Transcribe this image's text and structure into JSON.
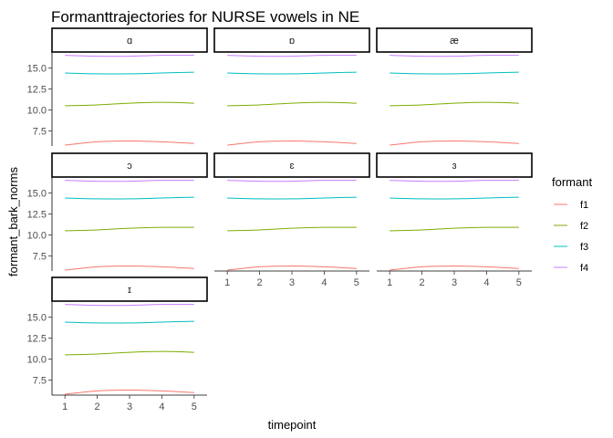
{
  "chart_data": {
    "type": "line",
    "title": "Formanttrajectories for NURSE vowels in NE",
    "xlabel": "timepoint",
    "ylabel": "formant_bark_norms",
    "x": [
      1,
      2,
      3,
      4,
      5
    ],
    "xlim": [
      0.6,
      5.4
    ],
    "ylim": [
      5.7,
      16.9
    ],
    "yticks": [
      7.5,
      10.0,
      12.5,
      15.0
    ],
    "ytick_labels": [
      "7.5",
      "10.0",
      "12.5",
      "15.0"
    ],
    "xticks": [
      "1",
      "2",
      "3",
      "4",
      "5"
    ],
    "grid": false,
    "facet_layout": "3 columns, free x axes shown on bottom row of each column",
    "legend": {
      "title": "formant",
      "position": "right",
      "entries": [
        {
          "label": "f1",
          "color": "#F8766D"
        },
        {
          "label": "f2",
          "color": "#7CAE00"
        },
        {
          "label": "f3",
          "color": "#00BFC4"
        },
        {
          "label": "f4",
          "color": "#C77CFF"
        }
      ]
    },
    "facets": [
      {
        "label": "ɑ",
        "series": [
          {
            "name": "f1",
            "values": [
              5.8,
              6.2,
              6.3,
              6.2,
              6.0
            ]
          },
          {
            "name": "f2",
            "values": [
              10.5,
              10.6,
              10.8,
              10.9,
              10.8
            ]
          },
          {
            "name": "f3",
            "values": [
              14.4,
              14.3,
              14.3,
              14.4,
              14.5
            ]
          },
          {
            "name": "f4",
            "values": [
              16.5,
              16.4,
              16.4,
              16.5,
              16.5
            ]
          }
        ]
      },
      {
        "label": "ɒ",
        "series": [
          {
            "name": "f1",
            "values": [
              5.8,
              6.2,
              6.3,
              6.2,
              6.0
            ]
          },
          {
            "name": "f2",
            "values": [
              10.5,
              10.6,
              10.8,
              10.9,
              10.8
            ]
          },
          {
            "name": "f3",
            "values": [
              14.4,
              14.3,
              14.3,
              14.4,
              14.5
            ]
          },
          {
            "name": "f4",
            "values": [
              16.5,
              16.4,
              16.4,
              16.5,
              16.5
            ]
          }
        ]
      },
      {
        "label": "æ",
        "series": [
          {
            "name": "f1",
            "values": [
              5.8,
              6.2,
              6.3,
              6.2,
              6.0
            ]
          },
          {
            "name": "f2",
            "values": [
              10.5,
              10.6,
              10.8,
              10.9,
              10.8
            ]
          },
          {
            "name": "f3",
            "values": [
              14.4,
              14.3,
              14.3,
              14.4,
              14.5
            ]
          },
          {
            "name": "f4",
            "values": [
              16.5,
              16.4,
              16.4,
              16.5,
              16.5
            ]
          }
        ]
      },
      {
        "label": "ɔ",
        "series": [
          {
            "name": "f1",
            "values": [
              5.8,
              6.2,
              6.3,
              6.2,
              6.0
            ]
          },
          {
            "name": "f2",
            "values": [
              10.5,
              10.6,
              10.8,
              10.9,
              10.9
            ]
          },
          {
            "name": "f3",
            "values": [
              14.4,
              14.3,
              14.3,
              14.4,
              14.5
            ]
          },
          {
            "name": "f4",
            "values": [
              16.5,
              16.4,
              16.4,
              16.5,
              16.5
            ]
          }
        ]
      },
      {
        "label": "ɛ",
        "series": [
          {
            "name": "f1",
            "values": [
              5.8,
              6.2,
              6.3,
              6.2,
              6.0
            ]
          },
          {
            "name": "f2",
            "values": [
              10.5,
              10.6,
              10.8,
              10.9,
              10.9
            ]
          },
          {
            "name": "f3",
            "values": [
              14.4,
              14.3,
              14.3,
              14.4,
              14.5
            ]
          },
          {
            "name": "f4",
            "values": [
              16.5,
              16.4,
              16.4,
              16.5,
              16.5
            ]
          }
        ]
      },
      {
        "label": "ɜ",
        "series": [
          {
            "name": "f1",
            "values": [
              5.8,
              6.2,
              6.3,
              6.2,
              6.0
            ]
          },
          {
            "name": "f2",
            "values": [
              10.5,
              10.6,
              10.8,
              10.9,
              10.9
            ]
          },
          {
            "name": "f3",
            "values": [
              14.4,
              14.3,
              14.3,
              14.4,
              14.5
            ]
          },
          {
            "name": "f4",
            "values": [
              16.5,
              16.4,
              16.4,
              16.5,
              16.5
            ]
          }
        ]
      },
      {
        "label": "ɪ",
        "series": [
          {
            "name": "f1",
            "values": [
              5.8,
              6.2,
              6.3,
              6.2,
              6.0
            ]
          },
          {
            "name": "f2",
            "values": [
              10.5,
              10.6,
              10.8,
              10.9,
              10.8
            ]
          },
          {
            "name": "f3",
            "values": [
              14.4,
              14.3,
              14.3,
              14.4,
              14.5
            ]
          },
          {
            "name": "f4",
            "values": [
              16.5,
              16.4,
              16.4,
              16.5,
              16.5
            ]
          }
        ]
      }
    ]
  }
}
